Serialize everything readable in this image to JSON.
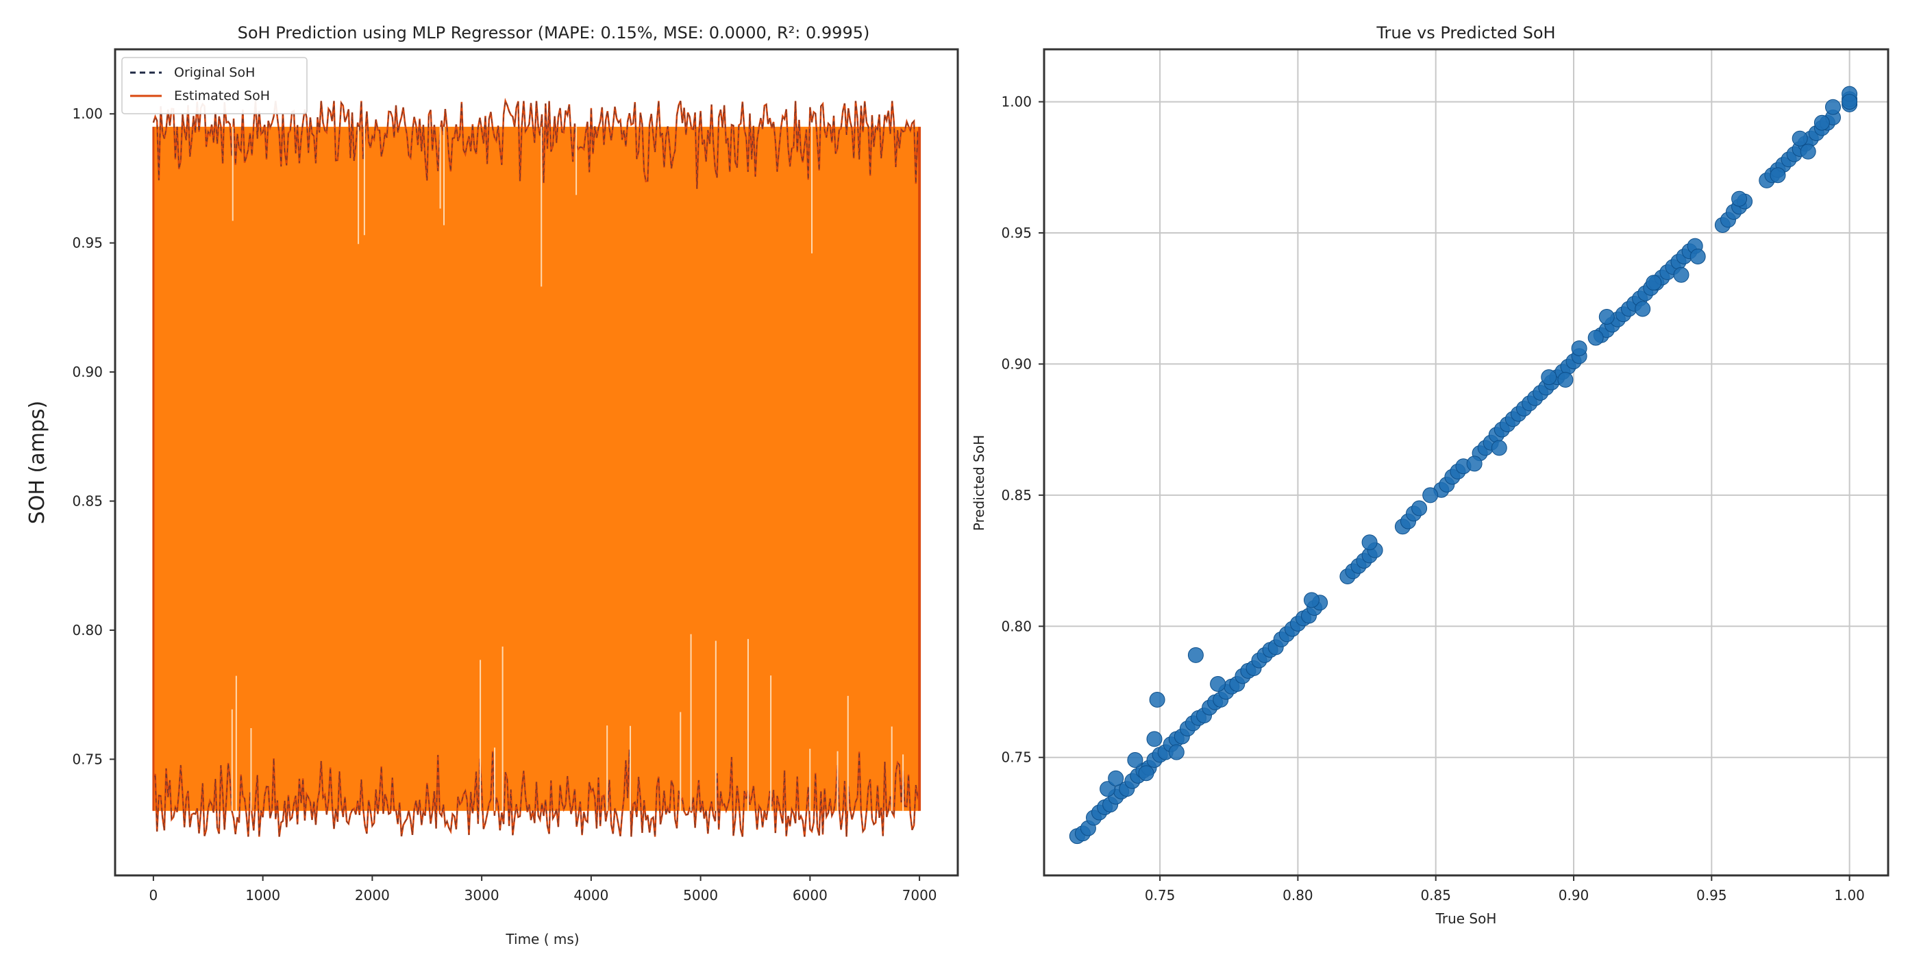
{
  "chart_data": [
    {
      "type": "line",
      "title": "SoH Prediction using MLP Regressor (MAPE: 0.15%, MSE: 0.0000, R²: 0.9995)",
      "xlabel": "Time ( ms)",
      "ylabel": "SOH (amps)",
      "xlim": [
        -350,
        7350
      ],
      "ylim": [
        0.705,
        1.025
      ],
      "xticks": [
        "0",
        "1000",
        "2000",
        "3000",
        "4000",
        "5000",
        "6000",
        "7000"
      ],
      "yticks": [
        "0.75",
        "0.80",
        "0.85",
        "0.90",
        "0.95",
        "1.00"
      ],
      "grid": false,
      "legend_position": "top-left",
      "series": [
        {
          "name": "Original SoH",
          "style": "dashed",
          "color": "#1f2a44"
        },
        {
          "name": "Estimated SoH",
          "style": "solid",
          "color": "#d9480f"
        }
      ],
      "x_range": [
        0,
        7000
      ],
      "signal_band": {
        "min": 0.72,
        "max": 1.005,
        "upper_plateau": 0.995,
        "lower_plateau": 0.73
      },
      "fill_color": "#ff7f0e"
    },
    {
      "type": "scatter",
      "title": "True vs Predicted SoH",
      "xlabel": "True SoH",
      "ylabel": "Predicted SoH",
      "xlim": [
        0.708,
        1.014
      ],
      "ylim": [
        0.705,
        1.02
      ],
      "xticks": [
        "0.75",
        "0.80",
        "0.85",
        "0.90",
        "0.95",
        "1.00"
      ],
      "yticks": [
        "0.75",
        "0.80",
        "0.85",
        "0.90",
        "0.95",
        "1.00"
      ],
      "grid": true,
      "point_color": "#1f6fb4",
      "points": [
        [
          0.72,
          0.72
        ],
        [
          0.722,
          0.721
        ],
        [
          0.724,
          0.723
        ],
        [
          0.726,
          0.727
        ],
        [
          0.728,
          0.729
        ],
        [
          0.73,
          0.731
        ],
        [
          0.732,
          0.732
        ],
        [
          0.734,
          0.735
        ],
        [
          0.736,
          0.737
        ],
        [
          0.738,
          0.738
        ],
        [
          0.74,
          0.741
        ],
        [
          0.742,
          0.743
        ],
        [
          0.744,
          0.745
        ],
        [
          0.746,
          0.746
        ],
        [
          0.748,
          0.749
        ],
        [
          0.75,
          0.751
        ],
        [
          0.752,
          0.752
        ],
        [
          0.754,
          0.755
        ],
        [
          0.756,
          0.757
        ],
        [
          0.758,
          0.758
        ],
        [
          0.76,
          0.761
        ],
        [
          0.762,
          0.763
        ],
        [
          0.764,
          0.765
        ],
        [
          0.766,
          0.766
        ],
        [
          0.768,
          0.769
        ],
        [
          0.77,
          0.771
        ],
        [
          0.772,
          0.772
        ],
        [
          0.774,
          0.775
        ],
        [
          0.776,
          0.777
        ],
        [
          0.778,
          0.778
        ],
        [
          0.78,
          0.781
        ],
        [
          0.782,
          0.783
        ],
        [
          0.784,
          0.784
        ],
        [
          0.786,
          0.787
        ],
        [
          0.788,
          0.789
        ],
        [
          0.79,
          0.791
        ],
        [
          0.792,
          0.792
        ],
        [
          0.794,
          0.795
        ],
        [
          0.796,
          0.797
        ],
        [
          0.798,
          0.799
        ],
        [
          0.8,
          0.801
        ],
        [
          0.802,
          0.803
        ],
        [
          0.804,
          0.804
        ],
        [
          0.806,
          0.807
        ],
        [
          0.808,
          0.809
        ],
        [
          0.818,
          0.819
        ],
        [
          0.82,
          0.821
        ],
        [
          0.822,
          0.823
        ],
        [
          0.824,
          0.825
        ],
        [
          0.826,
          0.827
        ],
        [
          0.828,
          0.829
        ],
        [
          0.838,
          0.838
        ],
        [
          0.84,
          0.84
        ],
        [
          0.842,
          0.843
        ],
        [
          0.844,
          0.845
        ],
        [
          0.852,
          0.852
        ],
        [
          0.854,
          0.854
        ],
        [
          0.856,
          0.857
        ],
        [
          0.858,
          0.859
        ],
        [
          0.86,
          0.861
        ],
        [
          0.866,
          0.866
        ],
        [
          0.868,
          0.868
        ],
        [
          0.87,
          0.87
        ],
        [
          0.872,
          0.873
        ],
        [
          0.874,
          0.875
        ],
        [
          0.876,
          0.877
        ],
        [
          0.878,
          0.879
        ],
        [
          0.88,
          0.881
        ],
        [
          0.882,
          0.883
        ],
        [
          0.884,
          0.885
        ],
        [
          0.886,
          0.887
        ],
        [
          0.888,
          0.889
        ],
        [
          0.89,
          0.891
        ],
        [
          0.892,
          0.893
        ],
        [
          0.894,
          0.895
        ],
        [
          0.896,
          0.897
        ],
        [
          0.898,
          0.899
        ],
        [
          0.9,
          0.901
        ],
        [
          0.902,
          0.903
        ],
        [
          0.91,
          0.911
        ],
        [
          0.912,
          0.913
        ],
        [
          0.914,
          0.915
        ],
        [
          0.916,
          0.917
        ],
        [
          0.918,
          0.919
        ],
        [
          0.92,
          0.921
        ],
        [
          0.922,
          0.923
        ],
        [
          0.924,
          0.925
        ],
        [
          0.926,
          0.927
        ],
        [
          0.928,
          0.929
        ],
        [
          0.93,
          0.931
        ],
        [
          0.932,
          0.933
        ],
        [
          0.934,
          0.935
        ],
        [
          0.936,
          0.937
        ],
        [
          0.938,
          0.939
        ],
        [
          0.94,
          0.941
        ],
        [
          0.942,
          0.943
        ],
        [
          0.944,
          0.945
        ],
        [
          0.954,
          0.953
        ],
        [
          0.956,
          0.955
        ],
        [
          0.958,
          0.958
        ],
        [
          0.96,
          0.96
        ],
        [
          0.962,
          0.962
        ],
        [
          0.97,
          0.97
        ],
        [
          0.972,
          0.972
        ],
        [
          0.974,
          0.974
        ],
        [
          0.976,
          0.976
        ],
        [
          0.978,
          0.978
        ],
        [
          0.98,
          0.98
        ],
        [
          0.982,
          0.982
        ],
        [
          0.984,
          0.984
        ],
        [
          0.986,
          0.986
        ],
        [
          0.988,
          0.988
        ],
        [
          0.99,
          0.99
        ],
        [
          0.992,
          0.992
        ],
        [
          0.994,
          0.994
        ],
        [
          1.0,
          0.999
        ],
        [
          1.0,
          1.001
        ],
        [
          1.0,
          1.003
        ],
        [
          1.0,
          1.0
        ],
        [
          0.731,
          0.738
        ],
        [
          0.734,
          0.742
        ],
        [
          0.741,
          0.749
        ],
        [
          0.745,
          0.744
        ],
        [
          0.748,
          0.757
        ],
        [
          0.749,
          0.772
        ],
        [
          0.756,
          0.752
        ],
        [
          0.763,
          0.789
        ],
        [
          0.771,
          0.778
        ],
        [
          0.805,
          0.81
        ],
        [
          0.826,
          0.832
        ],
        [
          0.848,
          0.85
        ],
        [
          0.864,
          0.862
        ],
        [
          0.873,
          0.868
        ],
        [
          0.891,
          0.895
        ],
        [
          0.897,
          0.894
        ],
        [
          0.902,
          0.906
        ],
        [
          0.908,
          0.91
        ],
        [
          0.912,
          0.918
        ],
        [
          0.925,
          0.921
        ],
        [
          0.929,
          0.931
        ],
        [
          0.939,
          0.934
        ],
        [
          0.945,
          0.941
        ],
        [
          0.96,
          0.963
        ],
        [
          0.974,
          0.972
        ],
        [
          0.982,
          0.986
        ],
        [
          0.985,
          0.981
        ],
        [
          0.99,
          0.992
        ],
        [
          0.994,
          0.998
        ]
      ]
    }
  ]
}
